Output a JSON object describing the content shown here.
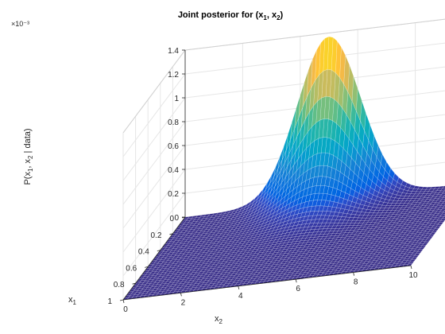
{
  "chart_data": {
    "type": "surface",
    "title": "Joint posterior for (x1, x2)",
    "xlabel": "x2",
    "ylabel": "x1",
    "zlabel": "P(x1, x2 | data)",
    "z_exponent_label": "×10⁻³",
    "x_range": [
      0,
      10
    ],
    "y_range": [
      0,
      1
    ],
    "z_range": [
      0,
      0.0014
    ],
    "x_ticks": [
      "0",
      "2",
      "4",
      "6",
      "8",
      "10"
    ],
    "y_ticks": [
      "0",
      "0.2",
      "0.4",
      "0.6",
      "0.8",
      "1"
    ],
    "z_ticks": [
      "0",
      "0.2",
      "0.4",
      "0.6",
      "0.8",
      "1",
      "1.2",
      "1.4"
    ],
    "peak": {
      "x2": 5,
      "x1": 0,
      "value": 0.00137
    },
    "grid": true,
    "colormap": "parula",
    "surface": {
      "function": "gaussian ridge along x1 = 0, decaying with x1",
      "x2_center": 5,
      "x2_sigma": 1.1,
      "x1_decay": 0.12,
      "peak_value": 0.00137
    }
  },
  "colors": {
    "background": "#ffffff",
    "axis": "#262626",
    "grid": "#e6e6e6",
    "base_surface": "#3e2f8f"
  }
}
